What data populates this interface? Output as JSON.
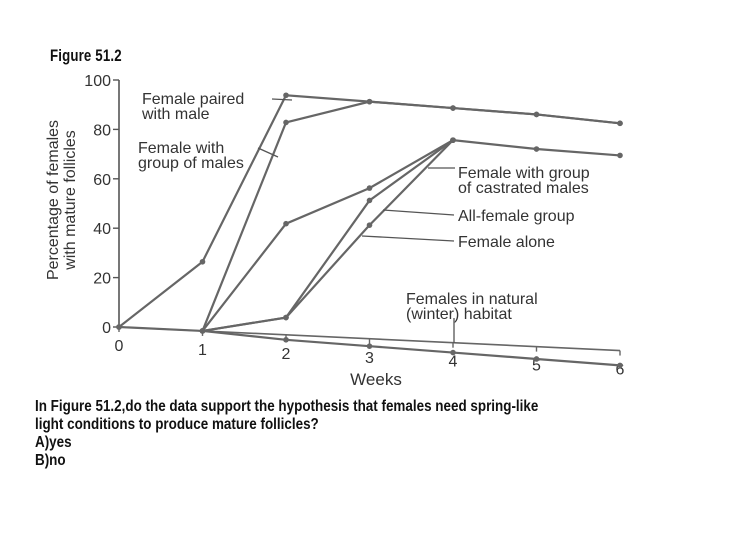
{
  "figure_label": "Figure 51.2",
  "chart_data": {
    "type": "line",
    "xlabel": "Weeks",
    "ylabel": [
      "Percentage of females",
      "with mature follicles"
    ],
    "x_ticks": [
      0,
      1,
      2,
      3,
      4,
      5,
      6
    ],
    "y_ticks": [
      0,
      20,
      40,
      60,
      80,
      100
    ],
    "xlim": [
      0,
      6
    ],
    "ylim": [
      0,
      100
    ],
    "grid": false,
    "series": [
      {
        "name": "Female paired with male",
        "label_lines": [
          "Female paired",
          "with male"
        ],
        "x": [
          0,
          1,
          2,
          3,
          4,
          5,
          6
        ],
        "y": [
          0,
          28,
          97,
          96,
          95,
          94,
          92
        ]
      },
      {
        "name": "Female with group of males",
        "label_lines": [
          "Female with",
          "group of males"
        ],
        "x": [
          1,
          2,
          3,
          4,
          5,
          6
        ],
        "y": [
          0,
          86,
          96,
          95,
          94,
          92
        ]
      },
      {
        "name": "Female with group of castrated males",
        "label_lines": [
          "Female with group",
          "of castrated males"
        ],
        "x": [
          1,
          2,
          3,
          4,
          5,
          6
        ],
        "y": [
          0,
          45,
          61,
          82,
          80,
          79
        ]
      },
      {
        "name": "All-female group",
        "label_lines": [
          "All-female group"
        ],
        "x": [
          1,
          2,
          3,
          4
        ],
        "y": [
          0,
          7,
          56,
          82
        ]
      },
      {
        "name": "Female alone",
        "label_lines": [
          "Female alone"
        ],
        "x": [
          1,
          2,
          3,
          4
        ],
        "y": [
          0,
          7,
          46,
          82
        ]
      },
      {
        "name": "Females in natural (winter) habitat",
        "label_lines": [
          "Females in natural",
          "(winter) habitat"
        ],
        "x": [
          0,
          1,
          2,
          3,
          4,
          5,
          6
        ],
        "y": [
          0,
          0,
          -2,
          -3,
          -4,
          -5,
          -6
        ]
      }
    ]
  },
  "question": {
    "line1": "In Figure 51.2,do the data support the hypothesis that females need spring-like",
    "line2": "light conditions to produce mature follicles?",
    "option_a": "A)yes",
    "option_b": "B)no"
  }
}
